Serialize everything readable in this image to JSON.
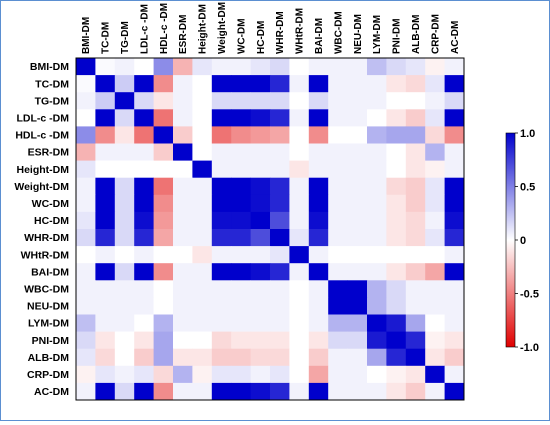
{
  "chart_data": {
    "type": "heatmap",
    "title": "",
    "variables": [
      "BMI-DM",
      "TC-DM",
      "TG-DM",
      "LDL-c -DM",
      "HDL-c -DM",
      "ESR-DM",
      "Height-DM",
      "Weight-DM",
      "WC-DM",
      "HC-DM",
      "WHR-DM",
      "WHtR-DM",
      "BAI-DM",
      "WBC-DM",
      "NEU-DM",
      "LYM-DM",
      "PNI-DM",
      "ALB-DM",
      "CRP-DM",
      "AC-DM"
    ],
    "colorbar": {
      "ticks": [
        1.0,
        0.5,
        0,
        -0.5,
        -1.0
      ],
      "tick_labels": [
        "1.0",
        "0.5",
        "0",
        "-0.5",
        "-1.0"
      ],
      "range": [
        -1.0,
        1.0
      ],
      "colors": {
        "positive": "#0000cc",
        "zero": "#ffffff",
        "negative": "#e00000"
      }
    },
    "matrix": [
      [
        1,
        0.02,
        0.05,
        0,
        0.45,
        -0.3,
        0.1,
        0.05,
        0.05,
        0.1,
        0.15,
        0,
        0.05,
        0.05,
        0.05,
        0.25,
        0.15,
        0.1,
        -0.05,
        0.05
      ],
      [
        0.02,
        1,
        0.2,
        1,
        -0.45,
        0.05,
        0,
        1,
        1,
        1,
        0.85,
        0.05,
        1,
        0.05,
        0.05,
        0.05,
        -0.1,
        -0.15,
        0.1,
        1
      ],
      [
        0.05,
        0.2,
        1,
        0.15,
        -0.1,
        0.05,
        0,
        0.15,
        0.15,
        0.15,
        0.15,
        0,
        0.15,
        0.05,
        0.05,
        0.05,
        0,
        0,
        0.05,
        0.15
      ],
      [
        0,
        1,
        0.15,
        1,
        -0.55,
        0.05,
        0,
        1,
        1,
        0.95,
        0.85,
        0.05,
        1,
        0.05,
        0.05,
        0,
        -0.1,
        -0.2,
        0.1,
        1
      ],
      [
        0.45,
        -0.45,
        -0.1,
        -0.55,
        1,
        -0.2,
        0,
        -0.55,
        -0.45,
        -0.4,
        -0.35,
        0,
        -0.45,
        0,
        0,
        0.3,
        0.35,
        0.35,
        -0.15,
        -0.45
      ],
      [
        -0.3,
        0.05,
        0.05,
        0.05,
        -0.2,
        1,
        0,
        0.05,
        0.05,
        0.05,
        0.05,
        0,
        0.05,
        0.05,
        0.05,
        0.05,
        0,
        -0.1,
        0.3,
        0.05
      ],
      [
        0.1,
        0,
        0,
        0,
        0,
        0,
        1,
        0.05,
        0.05,
        0.05,
        0.05,
        -0.1,
        0.05,
        0.05,
        0.05,
        0.05,
        0,
        -0.1,
        -0.05,
        0.05
      ],
      [
        0.05,
        1,
        0.15,
        1,
        -0.55,
        0.05,
        0.05,
        1,
        1,
        0.95,
        0.85,
        0.05,
        1,
        0.05,
        0.05,
        0.05,
        -0.15,
        -0.2,
        0.1,
        1
      ],
      [
        0.05,
        1,
        0.15,
        1,
        -0.45,
        0.05,
        0.05,
        1,
        1,
        0.95,
        0.85,
        0.05,
        1,
        0.05,
        0.05,
        0.05,
        -0.1,
        -0.2,
        0.1,
        1
      ],
      [
        0.1,
        1,
        0.15,
        0.95,
        -0.4,
        0.05,
        0.05,
        0.95,
        0.95,
        1,
        0.7,
        0.05,
        0.95,
        0.05,
        0.05,
        0.05,
        -0.1,
        -0.15,
        0.05,
        0.95
      ],
      [
        0.15,
        0.85,
        0.15,
        0.85,
        -0.35,
        0.05,
        0.05,
        0.85,
        0.85,
        0.7,
        1,
        0.1,
        0.85,
        0.05,
        0.05,
        0.05,
        -0.1,
        -0.15,
        0.1,
        0.85
      ],
      [
        0,
        0.05,
        0,
        0.05,
        0,
        0,
        -0.1,
        0.05,
        0.05,
        0.05,
        0.1,
        1,
        0.05,
        0,
        0,
        0,
        0,
        0,
        0,
        0.05
      ],
      [
        0.05,
        1,
        0.15,
        1,
        -0.45,
        0.05,
        0.05,
        1,
        1,
        0.95,
        0.85,
        0.05,
        1,
        0.05,
        0.05,
        0.05,
        -0.1,
        -0.2,
        -0.35,
        1
      ],
      [
        0.05,
        0.05,
        0.05,
        0.05,
        0,
        0.05,
        0.05,
        0.05,
        0.05,
        0.05,
        0.05,
        0,
        0.05,
        1,
        1,
        0.3,
        0.15,
        0.05,
        0.05,
        0.05
      ],
      [
        0.05,
        0.05,
        0.05,
        0.05,
        0,
        0.05,
        0.05,
        0.05,
        0.05,
        0.05,
        0.05,
        0,
        0.05,
        1,
        1,
        0.3,
        0.15,
        0.05,
        0.05,
        0.05
      ],
      [
        0.25,
        0.05,
        0.05,
        0,
        0.3,
        0.05,
        0.05,
        0.05,
        0.05,
        0.05,
        0.05,
        0,
        0.05,
        0.3,
        0.3,
        1,
        0.9,
        0.35,
        0,
        0.05
      ],
      [
        0.15,
        -0.1,
        0,
        -0.1,
        0.35,
        0,
        0,
        -0.15,
        -0.1,
        -0.1,
        -0.1,
        0,
        -0.1,
        0.15,
        0.15,
        0.9,
        1,
        0.85,
        -0.05,
        -0.1
      ],
      [
        0.1,
        -0.15,
        0,
        -0.2,
        0.35,
        -0.1,
        -0.1,
        -0.2,
        -0.2,
        -0.15,
        -0.15,
        0,
        -0.2,
        0.05,
        0.05,
        0.35,
        0.85,
        1,
        -0.1,
        -0.2
      ],
      [
        -0.05,
        0.1,
        0.05,
        0.1,
        -0.15,
        0.3,
        -0.05,
        0.1,
        0.1,
        0.05,
        0.1,
        0,
        -0.35,
        0.05,
        0.05,
        0,
        -0.05,
        -0.1,
        1,
        0.05
      ],
      [
        0.05,
        1,
        0.15,
        1,
        -0.45,
        0.05,
        0.05,
        1,
        1,
        0.95,
        0.85,
        0.05,
        1,
        0.05,
        0.05,
        0.05,
        -0.1,
        -0.2,
        0.05,
        1
      ]
    ]
  }
}
